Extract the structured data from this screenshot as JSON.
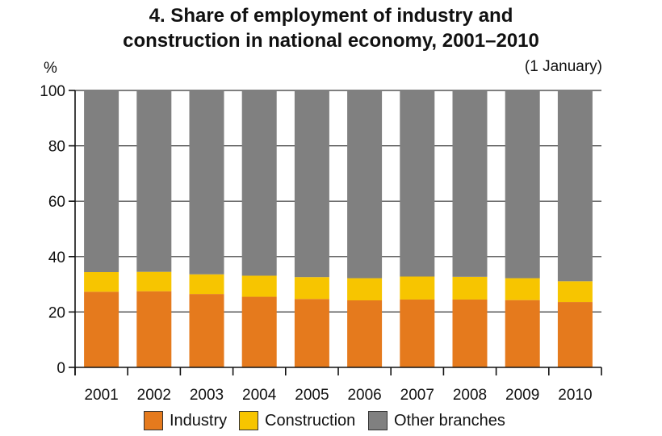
{
  "chart_data": {
    "type": "bar",
    "stacked": true,
    "title_lines": [
      "4. Share of employment of industry and",
      "construction in national economy, 2001–2010"
    ],
    "subtitle": "(1 January)",
    "ylabel": "%",
    "ylim": [
      0,
      100
    ],
    "yticks": [
      0,
      20,
      40,
      60,
      80,
      100
    ],
    "categories": [
      "2001",
      "2002",
      "2003",
      "2004",
      "2005",
      "2006",
      "2007",
      "2008",
      "2009",
      "2010"
    ],
    "series": [
      {
        "name": "Industry",
        "color": "#e57a1d",
        "values": [
          27.3,
          27.5,
          26.5,
          25.5,
          24.7,
          24.2,
          24.5,
          24.5,
          24.3,
          23.6
        ]
      },
      {
        "name": "Construction",
        "color": "#f7c500",
        "values": [
          7.1,
          7.0,
          7.1,
          7.6,
          7.9,
          8.0,
          8.3,
          8.2,
          7.9,
          7.5
        ]
      },
      {
        "name": "Other branches",
        "color": "#808080",
        "values": [
          65.6,
          65.5,
          66.4,
          66.9,
          67.4,
          67.8,
          67.2,
          67.3,
          67.8,
          68.9
        ]
      }
    ],
    "grid": true,
    "legend_position": "bottom"
  }
}
